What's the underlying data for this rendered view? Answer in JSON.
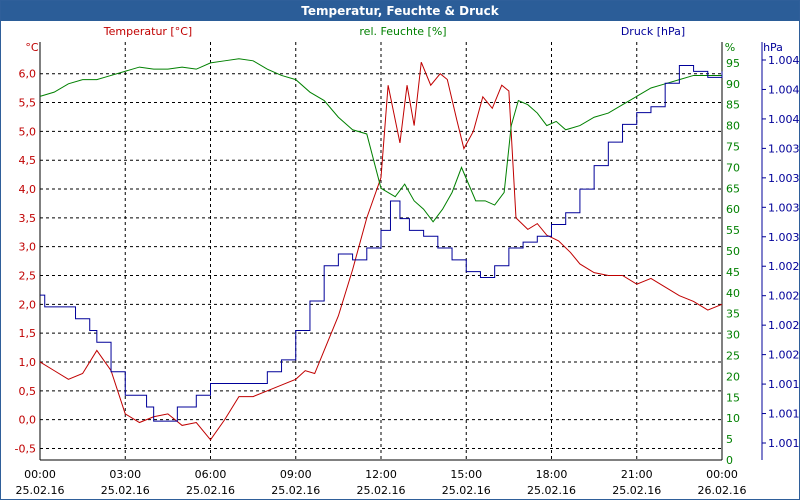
{
  "window": {
    "title": "Temperatur, Feuchte & Druck"
  },
  "colors": {
    "temperature": "#c00000",
    "humidity": "#008000",
    "pressure": "#000099",
    "grid": "#000000",
    "title_bg": "#2b5d98"
  },
  "chart_data": {
    "type": "line",
    "title": "Temperatur, Feuchte & Druck",
    "xlim": [
      "25.02.16 00:00",
      "26.02.16 00:00"
    ],
    "x_ticks": [
      {
        "time": "00:00",
        "date": "25.02.16"
      },
      {
        "time": "03:00",
        "date": "25.02.16"
      },
      {
        "time": "06:00",
        "date": "25.02.16"
      },
      {
        "time": "09:00",
        "date": "25.02.16"
      },
      {
        "time": "12:00",
        "date": "25.02.16"
      },
      {
        "time": "15:00",
        "date": "25.02.16"
      },
      {
        "time": "18:00",
        "date": "25.02.16"
      },
      {
        "time": "21:00",
        "date": "25.02.16"
      },
      {
        "time": "00:00",
        "date": "26.02.16"
      }
    ],
    "grid": true,
    "axes": {
      "temperature": {
        "label": "Temperatur [°C]",
        "unit": "°C",
        "ylim": [
          -0.7,
          6.55
        ],
        "ticks": [
          "6,0",
          "5,5",
          "5,0",
          "4,5",
          "4,0",
          "3,5",
          "3,0",
          "2,5",
          "2,0",
          "1,5",
          "1,0",
          "0,5",
          "0,0",
          "-0,5"
        ]
      },
      "humidity": {
        "label": "rel. Feuchte [%]",
        "unit": "%",
        "ylim": [
          0,
          100
        ],
        "ticks": [
          "95",
          "90",
          "85",
          "80",
          "75",
          "70",
          "65",
          "60",
          "55",
          "50",
          "45",
          "40",
          "35",
          "30",
          "25",
          "20",
          "15",
          "10",
          "5",
          "0"
        ]
      },
      "pressure": {
        "label": "Druck [hPa]",
        "unit": "hPa",
        "ylim": [
          1000.65,
          1004.2
        ],
        "ticks": [
          "1.004",
          "1.004",
          "1.004",
          "1.003",
          "1.003",
          "1.003",
          "1.003",
          "1.002",
          "1.002",
          "1.002",
          "1.002",
          "1.001",
          "1.001",
          "1.001"
        ]
      }
    },
    "series": [
      {
        "name": "Temperatur [°C]",
        "axis": "temperature",
        "points": [
          [
            "00:00",
            1.0
          ],
          [
            "00:30",
            0.85
          ],
          [
            "01:00",
            0.7
          ],
          [
            "01:30",
            0.8
          ],
          [
            "02:00",
            1.2
          ],
          [
            "02:30",
            0.85
          ],
          [
            "03:00",
            0.1
          ],
          [
            "03:30",
            -0.05
          ],
          [
            "04:00",
            0.05
          ],
          [
            "04:30",
            0.1
          ],
          [
            "05:00",
            -0.1
          ],
          [
            "05:30",
            -0.05
          ],
          [
            "06:00",
            -0.35
          ],
          [
            "06:30",
            0.0
          ],
          [
            "07:00",
            0.4
          ],
          [
            "07:30",
            0.4
          ],
          [
            "08:00",
            0.5
          ],
          [
            "08:30",
            0.6
          ],
          [
            "09:00",
            0.7
          ],
          [
            "09:20",
            0.85
          ],
          [
            "09:40",
            0.8
          ],
          [
            "10:00",
            1.2
          ],
          [
            "10:30",
            1.8
          ],
          [
            "11:00",
            2.6
          ],
          [
            "11:30",
            3.5
          ],
          [
            "12:00",
            4.2
          ],
          [
            "12:15",
            5.8
          ],
          [
            "12:40",
            4.8
          ],
          [
            "12:55",
            5.8
          ],
          [
            "13:10",
            5.1
          ],
          [
            "13:25",
            6.2
          ],
          [
            "13:45",
            5.8
          ],
          [
            "14:05",
            6.0
          ],
          [
            "14:20",
            5.9
          ],
          [
            "14:40",
            5.2
          ],
          [
            "14:55",
            4.7
          ],
          [
            "15:15",
            5.0
          ],
          [
            "15:35",
            5.6
          ],
          [
            "15:55",
            5.4
          ],
          [
            "16:15",
            5.8
          ],
          [
            "16:30",
            5.7
          ],
          [
            "16:45",
            3.5
          ],
          [
            "17:10",
            3.3
          ],
          [
            "17:30",
            3.4
          ],
          [
            "17:50",
            3.2
          ],
          [
            "18:15",
            3.1
          ],
          [
            "18:40",
            2.9
          ],
          [
            "19:00",
            2.7
          ],
          [
            "19:30",
            2.55
          ],
          [
            "20:00",
            2.5
          ],
          [
            "20:30",
            2.5
          ],
          [
            "21:00",
            2.35
          ],
          [
            "21:30",
            2.45
          ],
          [
            "22:00",
            2.3
          ],
          [
            "22:30",
            2.15
          ],
          [
            "23:00",
            2.05
          ],
          [
            "23:30",
            1.9
          ],
          [
            "24:00",
            2.0
          ]
        ]
      },
      {
        "name": "rel. Feuchte [%]",
        "axis": "humidity",
        "points": [
          [
            "00:00",
            87
          ],
          [
            "00:30",
            88
          ],
          [
            "01:00",
            90
          ],
          [
            "01:30",
            91
          ],
          [
            "02:00",
            91
          ],
          [
            "02:30",
            92
          ],
          [
            "03:00",
            93
          ],
          [
            "03:30",
            94
          ],
          [
            "04:00",
            93.5
          ],
          [
            "04:30",
            93.5
          ],
          [
            "05:00",
            94
          ],
          [
            "05:30",
            93.5
          ],
          [
            "06:00",
            95
          ],
          [
            "06:30",
            95.5
          ],
          [
            "07:00",
            96
          ],
          [
            "07:30",
            95.5
          ],
          [
            "08:00",
            93.5
          ],
          [
            "08:30",
            92
          ],
          [
            "09:00",
            91
          ],
          [
            "09:30",
            88
          ],
          [
            "10:00",
            86
          ],
          [
            "10:30",
            82
          ],
          [
            "11:00",
            79
          ],
          [
            "11:30",
            78
          ],
          [
            "12:00",
            65
          ],
          [
            "12:30",
            63
          ],
          [
            "12:50",
            66
          ],
          [
            "13:10",
            62
          ],
          [
            "13:30",
            60
          ],
          [
            "13:50",
            57
          ],
          [
            "14:10",
            60
          ],
          [
            "14:30",
            64
          ],
          [
            "14:50",
            70
          ],
          [
            "15:05",
            66
          ],
          [
            "15:20",
            62
          ],
          [
            "15:40",
            62
          ],
          [
            "16:00",
            61
          ],
          [
            "16:20",
            64
          ],
          [
            "16:35",
            80
          ],
          [
            "16:50",
            86
          ],
          [
            "17:10",
            85
          ],
          [
            "17:30",
            83
          ],
          [
            "17:50",
            80
          ],
          [
            "18:10",
            81
          ],
          [
            "18:30",
            79
          ],
          [
            "19:00",
            80
          ],
          [
            "19:30",
            82
          ],
          [
            "20:00",
            83
          ],
          [
            "20:30",
            85
          ],
          [
            "21:00",
            87
          ],
          [
            "21:30",
            89
          ],
          [
            "22:00",
            90
          ],
          [
            "22:30",
            91
          ],
          [
            "23:00",
            92
          ],
          [
            "23:30",
            92
          ],
          [
            "24:00",
            92
          ]
        ]
      },
      {
        "name": "Druck [hPa]",
        "axis": "pressure",
        "points": [
          [
            "00:00",
            1002.05
          ],
          [
            "00:10",
            1001.95
          ],
          [
            "01:00",
            1001.95
          ],
          [
            "01:15",
            1001.85
          ],
          [
            "01:30",
            1001.85
          ],
          [
            "01:45",
            1001.75
          ],
          [
            "02:00",
            1001.65
          ],
          [
            "02:30",
            1001.4
          ],
          [
            "03:00",
            1001.2
          ],
          [
            "03:30",
            1001.2
          ],
          [
            "03:45",
            1001.1
          ],
          [
            "04:00",
            1000.98
          ],
          [
            "04:30",
            1000.98
          ],
          [
            "04:50",
            1001.1
          ],
          [
            "05:10",
            1001.1
          ],
          [
            "05:30",
            1001.2
          ],
          [
            "06:00",
            1001.3
          ],
          [
            "06:30",
            1001.3
          ],
          [
            "07:00",
            1001.3
          ],
          [
            "07:30",
            1001.3
          ],
          [
            "08:00",
            1001.4
          ],
          [
            "08:30",
            1001.5
          ],
          [
            "09:00",
            1001.75
          ],
          [
            "09:30",
            1002.0
          ],
          [
            "10:00",
            1002.3
          ],
          [
            "10:30",
            1002.4
          ],
          [
            "11:00",
            1002.35
          ],
          [
            "11:30",
            1002.45
          ],
          [
            "12:00",
            1002.6
          ],
          [
            "12:20",
            1002.85
          ],
          [
            "12:40",
            1002.7
          ],
          [
            "13:00",
            1002.6
          ],
          [
            "13:30",
            1002.55
          ],
          [
            "14:00",
            1002.45
          ],
          [
            "14:30",
            1002.35
          ],
          [
            "15:00",
            1002.25
          ],
          [
            "15:30",
            1002.2
          ],
          [
            "16:00",
            1002.3
          ],
          [
            "16:30",
            1002.45
          ],
          [
            "17:00",
            1002.5
          ],
          [
            "17:30",
            1002.55
          ],
          [
            "18:00",
            1002.65
          ],
          [
            "18:30",
            1002.75
          ],
          [
            "19:00",
            1002.95
          ],
          [
            "19:30",
            1003.15
          ],
          [
            "20:00",
            1003.35
          ],
          [
            "20:30",
            1003.5
          ],
          [
            "21:00",
            1003.6
          ],
          [
            "21:30",
            1003.65
          ],
          [
            "22:00",
            1003.85
          ],
          [
            "22:30",
            1004.0
          ],
          [
            "23:00",
            1003.95
          ],
          [
            "23:30",
            1003.9
          ],
          [
            "24:00",
            1003.95
          ]
        ]
      }
    ]
  }
}
